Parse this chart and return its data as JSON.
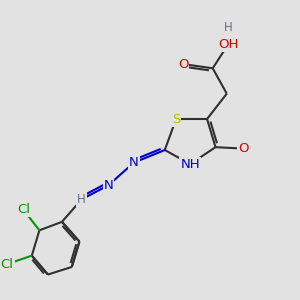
{
  "bg_color": "#e2e2e2",
  "atom_colors": {
    "C": "#303030",
    "H": "#607080",
    "O": "#dd0000",
    "N": "#0000cc",
    "S": "#bbbb00",
    "Cl": "#009900"
  },
  "bond_color": "#303030",
  "bond_width": 1.5,
  "font_size": 9.5
}
